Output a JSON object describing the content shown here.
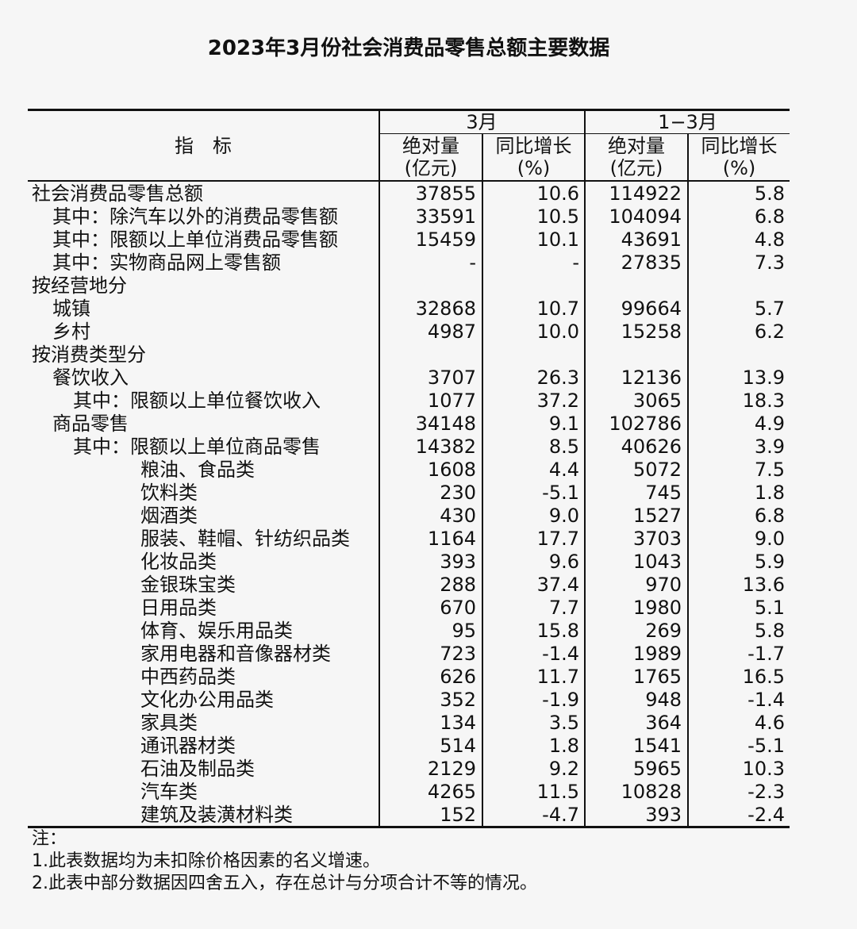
{
  "title": "2023年3月份社会消费品零售总额主要数据",
  "header": {
    "indicator": "指　标",
    "group_march": "3月",
    "group_q1": "1−3月",
    "abs": "绝对量",
    "abs_unit": "(亿元)",
    "yoy": "同比增长",
    "yoy_unit": "(%)"
  },
  "rows": [
    {
      "label": "社会消费品零售总额",
      "level": 0,
      "m_abs": "37855",
      "m_yoy": "10.6",
      "q_abs": "114922",
      "q_yoy": "5.8"
    },
    {
      "label": "其中：除汽车以外的消费品零售额",
      "level": 1,
      "m_abs": "33591",
      "m_yoy": "10.5",
      "q_abs": "104094",
      "q_yoy": "6.8"
    },
    {
      "label": "其中：限额以上单位消费品零售额",
      "level": 1,
      "m_abs": "15459",
      "m_yoy": "10.1",
      "q_abs": "43691",
      "q_yoy": "4.8"
    },
    {
      "label": "其中：实物商品网上零售额",
      "level": 1,
      "m_abs": "-",
      "m_yoy": "-",
      "q_abs": "27835",
      "q_yoy": "7.3"
    },
    {
      "label": "按经营地分",
      "level": 0,
      "m_abs": "",
      "m_yoy": "",
      "q_abs": "",
      "q_yoy": ""
    },
    {
      "label": "城镇",
      "level": 1,
      "m_abs": "32868",
      "m_yoy": "10.7",
      "q_abs": "99664",
      "q_yoy": "5.7"
    },
    {
      "label": "乡村",
      "level": 1,
      "m_abs": "4987",
      "m_yoy": "10.0",
      "q_abs": "15258",
      "q_yoy": "6.2"
    },
    {
      "label": "按消费类型分",
      "level": 0,
      "m_abs": "",
      "m_yoy": "",
      "q_abs": "",
      "q_yoy": ""
    },
    {
      "label": "餐饮收入",
      "level": 1,
      "m_abs": "3707",
      "m_yoy": "26.3",
      "q_abs": "12136",
      "q_yoy": "13.9"
    },
    {
      "label": "其中：限额以上单位餐饮收入",
      "level": 2,
      "m_abs": "1077",
      "m_yoy": "37.2",
      "q_abs": "3065",
      "q_yoy": "18.3"
    },
    {
      "label": "商品零售",
      "level": 1,
      "m_abs": "34148",
      "m_yoy": "9.1",
      "q_abs": "102786",
      "q_yoy": "4.9"
    },
    {
      "label": "其中：限额以上单位商品零售",
      "level": 2,
      "m_abs": "14382",
      "m_yoy": "8.5",
      "q_abs": "40626",
      "q_yoy": "3.9"
    },
    {
      "label": "粮油、食品类",
      "level": 3,
      "m_abs": "1608",
      "m_yoy": "4.4",
      "q_abs": "5072",
      "q_yoy": "7.5"
    },
    {
      "label": "饮料类",
      "level": 3,
      "m_abs": "230",
      "m_yoy": "-5.1",
      "q_abs": "745",
      "q_yoy": "1.8"
    },
    {
      "label": "烟酒类",
      "level": 3,
      "m_abs": "430",
      "m_yoy": "9.0",
      "q_abs": "1527",
      "q_yoy": "6.8"
    },
    {
      "label": "服装、鞋帽、针纺织品类",
      "level": 3,
      "m_abs": "1164",
      "m_yoy": "17.7",
      "q_abs": "3703",
      "q_yoy": "9.0"
    },
    {
      "label": "化妆品类",
      "level": 3,
      "m_abs": "393",
      "m_yoy": "9.6",
      "q_abs": "1043",
      "q_yoy": "5.9"
    },
    {
      "label": "金银珠宝类",
      "level": 3,
      "m_abs": "288",
      "m_yoy": "37.4",
      "q_abs": "970",
      "q_yoy": "13.6"
    },
    {
      "label": "日用品类",
      "level": 3,
      "m_abs": "670",
      "m_yoy": "7.7",
      "q_abs": "1980",
      "q_yoy": "5.1"
    },
    {
      "label": "体育、娱乐用品类",
      "level": 3,
      "m_abs": "95",
      "m_yoy": "15.8",
      "q_abs": "269",
      "q_yoy": "5.8"
    },
    {
      "label": "家用电器和音像器材类",
      "level": 3,
      "m_abs": "723",
      "m_yoy": "-1.4",
      "q_abs": "1989",
      "q_yoy": "-1.7"
    },
    {
      "label": "中西药品类",
      "level": 3,
      "m_abs": "626",
      "m_yoy": "11.7",
      "q_abs": "1765",
      "q_yoy": "16.5"
    },
    {
      "label": "文化办公用品类",
      "level": 3,
      "m_abs": "352",
      "m_yoy": "-1.9",
      "q_abs": "948",
      "q_yoy": "-1.4"
    },
    {
      "label": "家具类",
      "level": 3,
      "m_abs": "134",
      "m_yoy": "3.5",
      "q_abs": "364",
      "q_yoy": "4.6"
    },
    {
      "label": "通讯器材类",
      "level": 3,
      "m_abs": "514",
      "m_yoy": "1.8",
      "q_abs": "1541",
      "q_yoy": "-5.1"
    },
    {
      "label": "石油及制品类",
      "level": 3,
      "m_abs": "2129",
      "m_yoy": "9.2",
      "q_abs": "5965",
      "q_yoy": "10.3"
    },
    {
      "label": "汽车类",
      "level": 3,
      "m_abs": "4265",
      "m_yoy": "11.5",
      "q_abs": "10828",
      "q_yoy": "-2.3"
    },
    {
      "label": "建筑及装潢材料类",
      "level": 3,
      "m_abs": "152",
      "m_yoy": "-4.7",
      "q_abs": "393",
      "q_yoy": "-2.4"
    }
  ],
  "notes": {
    "heading": "注：",
    "items": [
      "1.此表数据均为未扣除价格因素的名义增速。",
      "2.此表中部分数据因四舍五入，存在总计与分项合计不等的情况。"
    ]
  }
}
